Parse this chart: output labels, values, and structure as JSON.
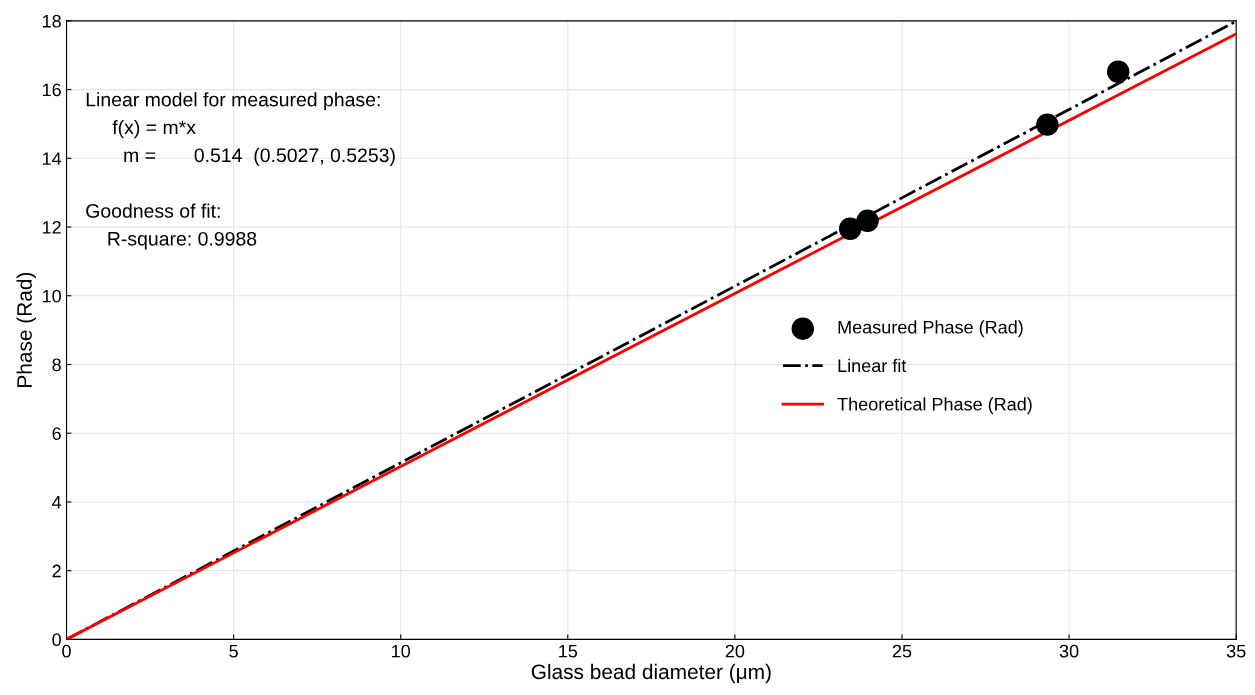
{
  "chart_data": {
    "type": "scatter",
    "xlabel": "Glass bead diameter (μm)",
    "ylabel": "Phase (Rad)",
    "xlim": [
      0,
      35
    ],
    "xticks": [
      0,
      5,
      10,
      15,
      20,
      25,
      30,
      35
    ],
    "ylim": [
      0,
      18
    ],
    "yticks": [
      0,
      2,
      4,
      6,
      8,
      10,
      12,
      14,
      16,
      18
    ],
    "grid": true,
    "legend": "right",
    "series": [
      {
        "name": "Measured Phase (Rad)",
        "color": "#000000",
        "marker": "circle",
        "x": [
          23.45,
          23.97,
          29.35,
          31.47
        ],
        "values": [
          11.95,
          12.18,
          14.98,
          16.52
        ]
      },
      {
        "name": "Linear fit",
        "type": "line",
        "color": "#000000",
        "line_style": "dashdot",
        "x": [
          0,
          35
        ],
        "values": [
          0,
          17.99
        ]
      },
      {
        "name": "Theoretical Phase (Rad)",
        "type": "line",
        "color": "#ff0000",
        "line_style": "solid",
        "x": [
          0,
          35
        ],
        "values": [
          0,
          17.62
        ]
      }
    ],
    "annotations": [
      "Linear model for measured phase:",
      "     f(x) = m*x",
      "       m =       0.514  (0.5027, 0.5253)",
      "Goodness of fit:",
      "    R-square: 0.9988"
    ]
  }
}
